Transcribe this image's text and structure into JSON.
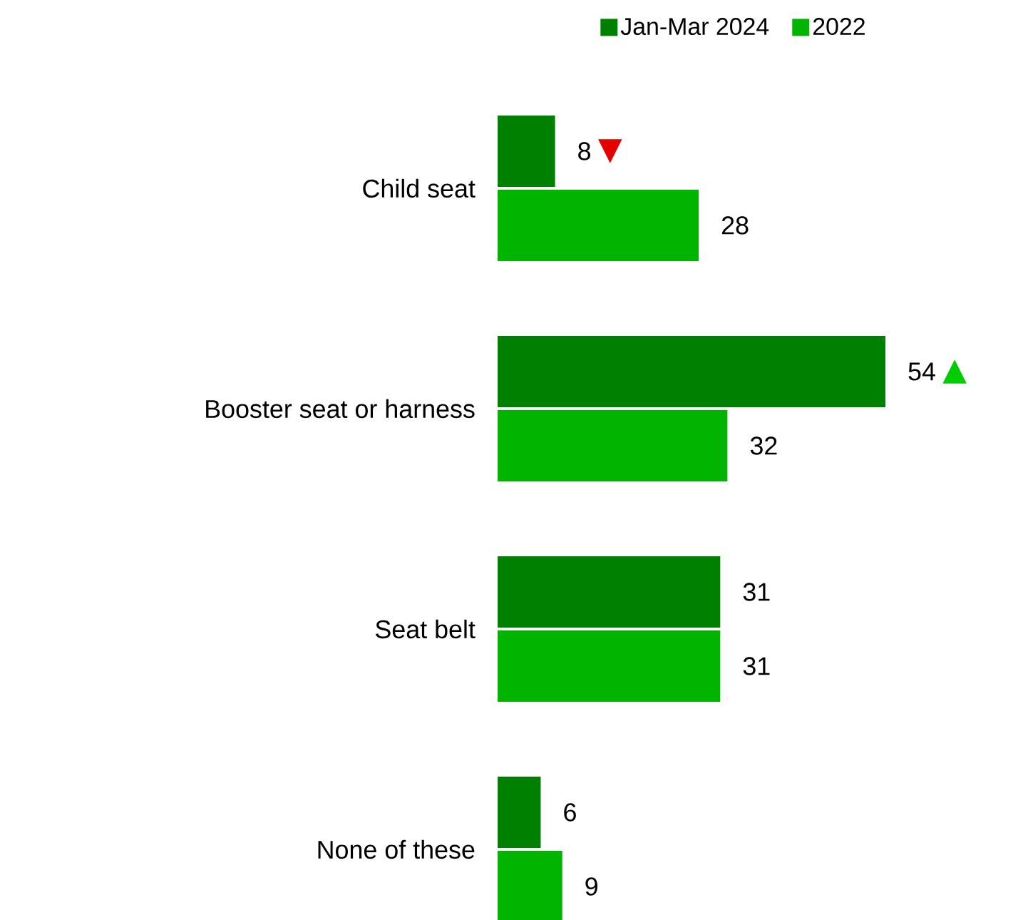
{
  "chart_data": {
    "type": "bar",
    "orientation": "horizontal",
    "categories": [
      "Child seat",
      "Booster seat or harness",
      "Seat belt",
      "None of these"
    ],
    "series": [
      {
        "name": "Jan-Mar 2024",
        "color": "#008000",
        "values": [
          8,
          54,
          31,
          6
        ]
      },
      {
        "name": "2022",
        "color": "#00b400",
        "values": [
          28,
          32,
          31,
          9
        ]
      }
    ],
    "data_labels": true,
    "legend": "top",
    "annotations": [
      {
        "text": "▼",
        "x": 8,
        "y": "Child seat"
      },
      {
        "text": "▲",
        "x": 54,
        "y": "Booster seat or harness"
      }
    ]
  }
}
